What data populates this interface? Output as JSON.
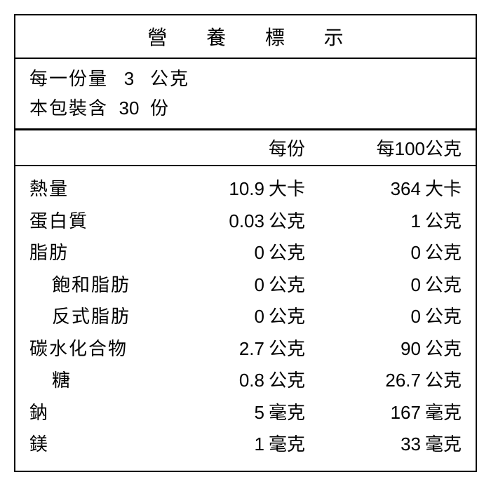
{
  "title": "營 養 標 示",
  "serving": {
    "size_label": "每一份量",
    "size_value": "3",
    "size_unit": "公克",
    "count_label": "本包裝含",
    "count_value": "30",
    "count_unit": "份"
  },
  "columns": {
    "per_serving": "每份",
    "per_100g": "每100公克"
  },
  "rows": [
    {
      "name": "熱量",
      "indent": false,
      "v1": "10.9",
      "u1": "大卡",
      "v2": "364",
      "u2": "大卡"
    },
    {
      "name": "蛋白質",
      "indent": false,
      "v1": "0.03",
      "u1": "公克",
      "v2": "1",
      "u2": "公克"
    },
    {
      "name": "脂肪",
      "indent": false,
      "v1": "0",
      "u1": "公克",
      "v2": "0",
      "u2": "公克"
    },
    {
      "name": "飽和脂肪",
      "indent": true,
      "v1": "0",
      "u1": "公克",
      "v2": "0",
      "u2": "公克"
    },
    {
      "name": "反式脂肪",
      "indent": true,
      "v1": "0",
      "u1": "公克",
      "v2": "0",
      "u2": "公克"
    },
    {
      "name": "碳水化合物",
      "indent": false,
      "v1": "2.7",
      "u1": "公克",
      "v2": "90",
      "u2": "公克"
    },
    {
      "name": "糖",
      "indent": true,
      "v1": "0.8",
      "u1": "公克",
      "v2": "26.7",
      "u2": "公克"
    },
    {
      "name": "鈉",
      "indent": false,
      "v1": "5",
      "u1": "毫克",
      "v2": "167",
      "u2": "毫克"
    },
    {
      "name": "鎂",
      "indent": false,
      "v1": "1",
      "u1": "毫克",
      "v2": "33",
      "u2": "毫克"
    }
  ],
  "style": {
    "border_color": "#000000",
    "background_color": "#ffffff",
    "text_color": "#000000",
    "title_fontsize": 28,
    "body_fontsize": 26
  }
}
